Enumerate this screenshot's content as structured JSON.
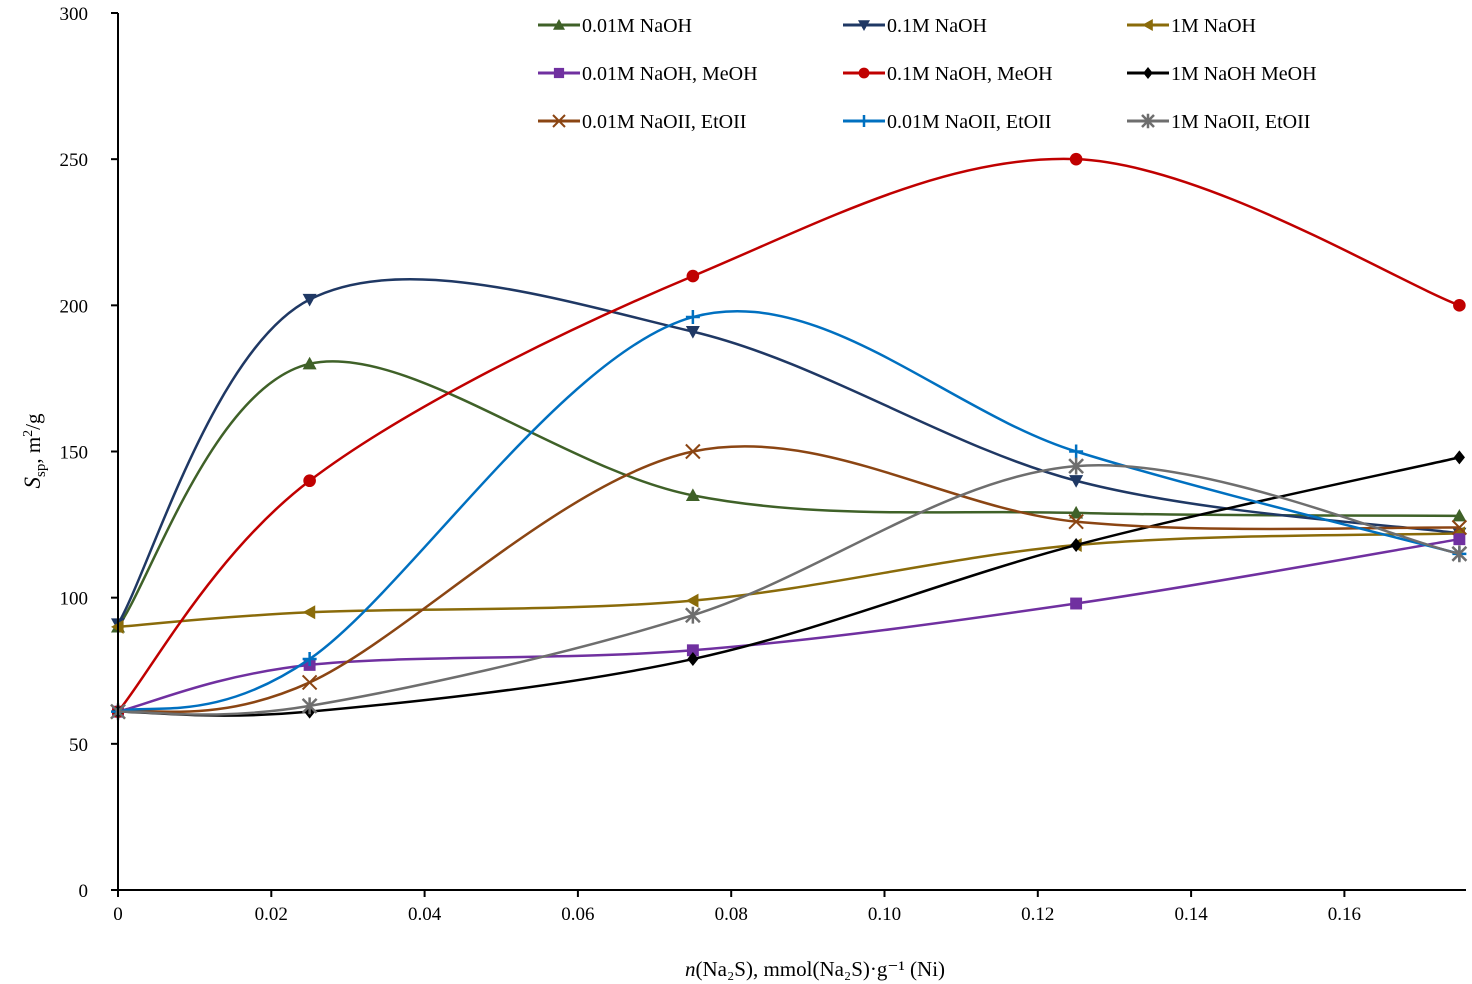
{
  "chart_data": {
    "type": "line",
    "title": "",
    "xlabel": "n(Na₂S), mmol(Na₂S)·g⁻¹ (Ni)",
    "xlabel_parts": {
      "italic": "n",
      "rest": "(Na₂S), mmol(Na₂S)·g⁻¹ (Ni)"
    },
    "ylabel": "Ssp, m²/g",
    "ylabel_parts": {
      "S": "S",
      "sub": "sp",
      "rest": ", m",
      "sup": "2",
      "tail": "/g"
    },
    "xlim": [
      0,
      0.175
    ],
    "ylim": [
      0,
      300
    ],
    "xticks": [
      0,
      0.02,
      0.04,
      0.06,
      0.08,
      0.1,
      0.12,
      0.14,
      0.16
    ],
    "xtick_labels": [
      "0",
      "0.02",
      "0.04",
      "0.06",
      "0.08",
      "0.10",
      "0.12",
      "0.14",
      "0.16"
    ],
    "yticks": [
      0,
      50,
      100,
      150,
      200,
      250,
      300
    ],
    "ytick_labels": [
      "0",
      "50",
      "100",
      "150",
      "200",
      "250",
      "300"
    ],
    "grid": false,
    "legend_position": "top-right",
    "smooth": true,
    "x": [
      0,
      0.025,
      0.075,
      0.125,
      0.175
    ],
    "series": [
      {
        "name": "0.01M NaOH",
        "color": "#3f6128",
        "marker": "triangle-up",
        "values": [
          90,
          180,
          135,
          129,
          128
        ]
      },
      {
        "name": "0.1M NaOH",
        "color": "#1f3864",
        "marker": "triangle-down",
        "values": [
          91,
          202,
          191,
          140,
          122
        ]
      },
      {
        "name": "1M NaOH",
        "color": "#8a6b0a",
        "marker": "triangle-left",
        "values": [
          90,
          95,
          99,
          118,
          122
        ]
      },
      {
        "name": "0.01M NaOH, MeOH",
        "color": "#7030a0",
        "marker": "square",
        "values": [
          61,
          77,
          82,
          98,
          120
        ]
      },
      {
        "name": "0.1M NaOH, MeOH",
        "color": "#c00000",
        "marker": "circle",
        "values": [
          61,
          140,
          210,
          250,
          200
        ]
      },
      {
        "name": "1M NaOH MeOH",
        "color": "#000000",
        "marker": "diamond",
        "values": [
          61,
          61,
          79,
          118,
          148
        ]
      },
      {
        "name": "0.01M NaOII, EtOII",
        "color": "#8b4513",
        "marker": "x",
        "values": [
          61,
          71,
          150,
          126,
          124
        ]
      },
      {
        "name": "0.01M NaOII, EtOII",
        "color": "#0070c0",
        "marker": "plus",
        "values": [
          61,
          79,
          196,
          150,
          115
        ]
      },
      {
        "name": "1M NaOII, EtOII",
        "color": "#6e6e6e",
        "marker": "star",
        "values": [
          61,
          63,
          94,
          145,
          115
        ]
      }
    ]
  }
}
